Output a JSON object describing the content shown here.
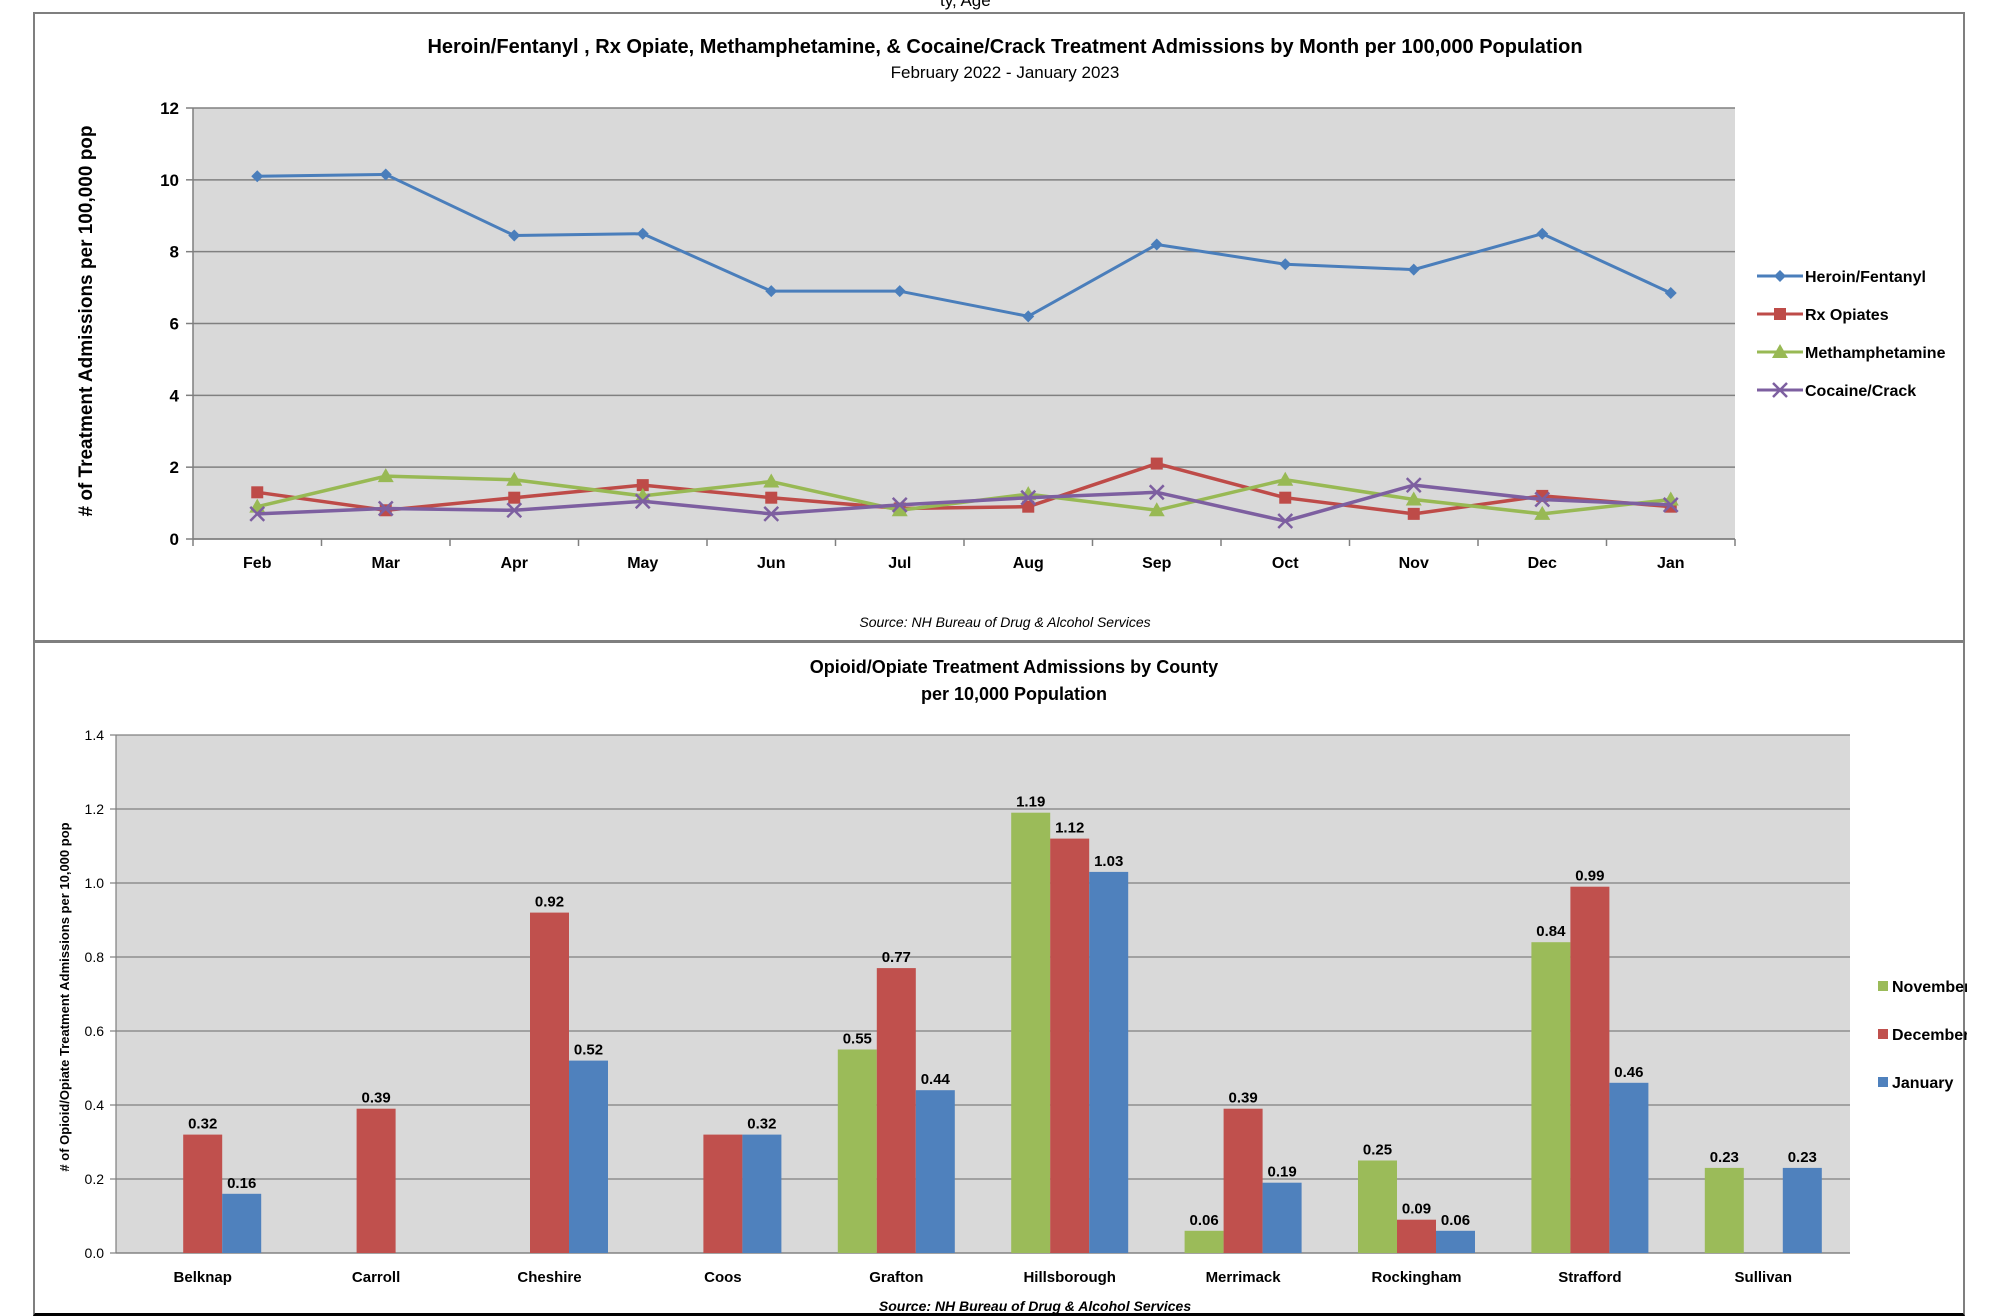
{
  "header_fragment": "ty, Age",
  "colors": {
    "heroin": "#4a7ebb",
    "rx": "#be4b48",
    "meth": "#98b954",
    "cocaine": "#7d5fa0",
    "november": "#9bbb59",
    "december": "#c0504d",
    "january": "#4f81bd",
    "plot_bg": "#d9d9d9",
    "grid": "#808080"
  },
  "chart_data": [
    {
      "type": "line",
      "title": "Heroin/Fentanyl , Rx Opiate, Methamphetamine, & Cocaine/Crack Treatment Admissions by Month per 100,000 Population",
      "subtitle": "February 2022 - January 2023",
      "ylabel": "# of Treatment Admissions per 100,000 pop",
      "xlabel": "",
      "categories": [
        "Feb",
        "Mar",
        "Apr",
        "May",
        "Jun",
        "Jul",
        "Aug",
        "Sep",
        "Oct",
        "Nov",
        "Dec",
        "Jan"
      ],
      "ylim": [
        0,
        12
      ],
      "yticks": [
        "0",
        "2",
        "4",
        "6",
        "8",
        "10",
        "12"
      ],
      "grid": true,
      "legend_position": "right",
      "source": "Source: NH Bureau of Drug & Alcohol Services",
      "series": [
        {
          "name": "Heroin/Fentanyl",
          "marker": "diamond",
          "values": [
            10.1,
            10.15,
            8.45,
            8.5,
            6.9,
            6.9,
            6.2,
            8.2,
            7.65,
            7.5,
            8.5,
            6.85
          ]
        },
        {
          "name": "Rx Opiates",
          "marker": "square",
          "values": [
            1.3,
            0.8,
            1.15,
            1.5,
            1.15,
            0.85,
            0.9,
            2.1,
            1.15,
            0.7,
            1.2,
            0.9
          ]
        },
        {
          "name": "Methamphetamine",
          "marker": "triangle",
          "values": [
            0.9,
            1.75,
            1.65,
            1.2,
            1.6,
            0.8,
            1.25,
            0.8,
            1.65,
            1.1,
            0.7,
            1.1
          ]
        },
        {
          "name": "Cocaine/Crack",
          "marker": "x",
          "values": [
            0.7,
            0.85,
            0.8,
            1.05,
            0.7,
            0.95,
            1.15,
            1.3,
            0.5,
            1.5,
            1.1,
            0.95
          ]
        }
      ]
    },
    {
      "type": "bar",
      "title": "Opioid/Opiate Treatment Admissions by County",
      "subtitle": "per 10,000 Population",
      "ylabel": "# of Opioid/Opiate Treatment Admissions per 10,000 pop",
      "xlabel": "",
      "categories": [
        "Belknap",
        "Carroll",
        "Cheshire",
        "Coos",
        "Grafton",
        "Hillsborough",
        "Merrimack",
        "Rockingham",
        "Strafford",
        "Sullivan"
      ],
      "ylim": [
        0,
        1.4
      ],
      "yticks": [
        "0.0",
        "0.2",
        "0.4",
        "0.6",
        "0.8",
        "1.0",
        "1.2",
        "1.4"
      ],
      "grid": true,
      "legend_position": "right",
      "source": "Source: NH Bureau of Drug & Alcohol Services",
      "series": [
        {
          "name": "November",
          "values": [
            null,
            null,
            null,
            null,
            0.55,
            1.19,
            0.06,
            0.25,
            0.84,
            0.23
          ],
          "labels": [
            "",
            "",
            "",
            "",
            "0.55",
            "1.19",
            "0.06",
            "0.25",
            "0.84",
            "0.23"
          ]
        },
        {
          "name": "December",
          "values": [
            0.32,
            0.39,
            0.92,
            0.32,
            0.77,
            1.12,
            0.39,
            0.09,
            0.99,
            null
          ],
          "labels": [
            "0.32",
            "0.39",
            "0.92",
            "",
            "0.77",
            "1.12",
            "0.39",
            "0.09",
            "0.99",
            ""
          ]
        },
        {
          "name": "January",
          "values": [
            0.16,
            null,
            0.52,
            0.32,
            0.44,
            1.03,
            0.19,
            0.06,
            0.46,
            0.23
          ],
          "labels": [
            "0.16",
            "",
            "0.52",
            "0.32",
            "0.44",
            "1.03",
            "0.19",
            "0.06",
            "0.46",
            "0.23"
          ]
        }
      ]
    }
  ]
}
